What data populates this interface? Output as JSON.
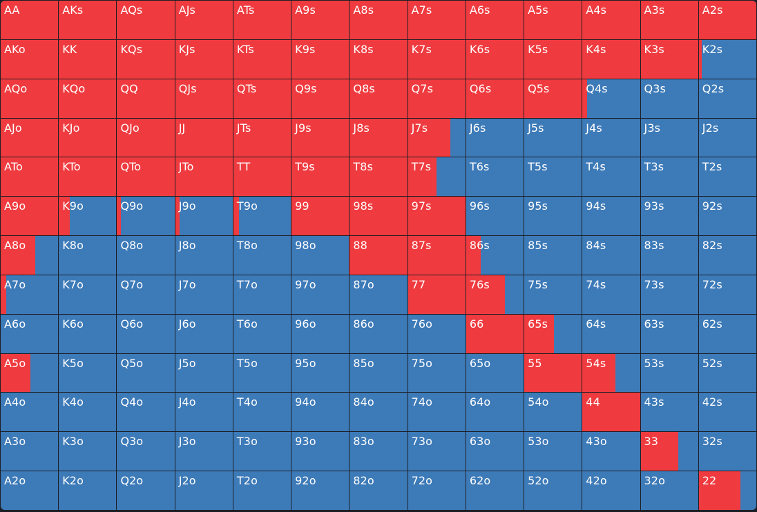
{
  "colors": {
    "raise": "#ef3b3f",
    "fold": "#3d7ab8",
    "grid_line": "#1b1e24"
  },
  "legend_meaning": {
    "raise_color_name": "red",
    "fold_color_name": "blue"
  },
  "ranks": [
    "A",
    "K",
    "Q",
    "J",
    "T",
    "9",
    "8",
    "7",
    "6",
    "5",
    "4",
    "3",
    "2"
  ],
  "rows": [
    [
      {
        "label": "AA",
        "raise_fraction": 1
      },
      {
        "label": "AKs",
        "raise_fraction": 1
      },
      {
        "label": "AQs",
        "raise_fraction": 1
      },
      {
        "label": "AJs",
        "raise_fraction": 1
      },
      {
        "label": "ATs",
        "raise_fraction": 1
      },
      {
        "label": "A9s",
        "raise_fraction": 1
      },
      {
        "label": "A8s",
        "raise_fraction": 1
      },
      {
        "label": "A7s",
        "raise_fraction": 1
      },
      {
        "label": "A6s",
        "raise_fraction": 1
      },
      {
        "label": "A5s",
        "raise_fraction": 1
      },
      {
        "label": "A4s",
        "raise_fraction": 1
      },
      {
        "label": "A3s",
        "raise_fraction": 1
      },
      {
        "label": "A2s",
        "raise_fraction": 1
      }
    ],
    [
      {
        "label": "AKo",
        "raise_fraction": 1
      },
      {
        "label": "KK",
        "raise_fraction": 1
      },
      {
        "label": "KQs",
        "raise_fraction": 1
      },
      {
        "label": "KJs",
        "raise_fraction": 1
      },
      {
        "label": "KTs",
        "raise_fraction": 1
      },
      {
        "label": "K9s",
        "raise_fraction": 1
      },
      {
        "label": "K8s",
        "raise_fraction": 1
      },
      {
        "label": "K7s",
        "raise_fraction": 1
      },
      {
        "label": "K6s",
        "raise_fraction": 1
      },
      {
        "label": "K5s",
        "raise_fraction": 1
      },
      {
        "label": "K4s",
        "raise_fraction": 1
      },
      {
        "label": "K3s",
        "raise_fraction": 1
      },
      {
        "label": "K2s",
        "raise_fraction": 0.05
      }
    ],
    [
      {
        "label": "AQo",
        "raise_fraction": 1
      },
      {
        "label": "KQo",
        "raise_fraction": 1
      },
      {
        "label": "QQ",
        "raise_fraction": 1
      },
      {
        "label": "QJs",
        "raise_fraction": 1
      },
      {
        "label": "QTs",
        "raise_fraction": 1
      },
      {
        "label": "Q9s",
        "raise_fraction": 1
      },
      {
        "label": "Q8s",
        "raise_fraction": 1
      },
      {
        "label": "Q7s",
        "raise_fraction": 1
      },
      {
        "label": "Q6s",
        "raise_fraction": 1
      },
      {
        "label": "Q5s",
        "raise_fraction": 1
      },
      {
        "label": "Q4s",
        "raise_fraction": 0.08
      },
      {
        "label": "Q3s",
        "raise_fraction": 0
      },
      {
        "label": "Q2s",
        "raise_fraction": 0
      }
    ],
    [
      {
        "label": "AJo",
        "raise_fraction": 1
      },
      {
        "label": "KJo",
        "raise_fraction": 1
      },
      {
        "label": "QJo",
        "raise_fraction": 1
      },
      {
        "label": "JJ",
        "raise_fraction": 1
      },
      {
        "label": "JTs",
        "raise_fraction": 1
      },
      {
        "label": "J9s",
        "raise_fraction": 1
      },
      {
        "label": "J8s",
        "raise_fraction": 1
      },
      {
        "label": "J7s",
        "raise_fraction": 0.74
      },
      {
        "label": "J6s",
        "raise_fraction": 0
      },
      {
        "label": "J5s",
        "raise_fraction": 0
      },
      {
        "label": "J4s",
        "raise_fraction": 0
      },
      {
        "label": "J3s",
        "raise_fraction": 0
      },
      {
        "label": "J2s",
        "raise_fraction": 0
      }
    ],
    [
      {
        "label": "ATo",
        "raise_fraction": 1
      },
      {
        "label": "KTo",
        "raise_fraction": 1
      },
      {
        "label": "QTo",
        "raise_fraction": 1
      },
      {
        "label": "JTo",
        "raise_fraction": 1
      },
      {
        "label": "TT",
        "raise_fraction": 1
      },
      {
        "label": "T9s",
        "raise_fraction": 1
      },
      {
        "label": "T8s",
        "raise_fraction": 1
      },
      {
        "label": "T7s",
        "raise_fraction": 0.5
      },
      {
        "label": "T6s",
        "raise_fraction": 0
      },
      {
        "label": "T5s",
        "raise_fraction": 0
      },
      {
        "label": "T4s",
        "raise_fraction": 0
      },
      {
        "label": "T3s",
        "raise_fraction": 0
      },
      {
        "label": "T2s",
        "raise_fraction": 0
      }
    ],
    [
      {
        "label": "A9o",
        "raise_fraction": 1
      },
      {
        "label": "K9o",
        "raise_fraction": 0.19
      },
      {
        "label": "Q9o",
        "raise_fraction": 0.07
      },
      {
        "label": "J9o",
        "raise_fraction": 0.07
      },
      {
        "label": "T9o",
        "raise_fraction": 0.1
      },
      {
        "label": "99",
        "raise_fraction": 1
      },
      {
        "label": "98s",
        "raise_fraction": 1
      },
      {
        "label": "97s",
        "raise_fraction": 1
      },
      {
        "label": "96s",
        "raise_fraction": 0
      },
      {
        "label": "95s",
        "raise_fraction": 0
      },
      {
        "label": "94s",
        "raise_fraction": 0
      },
      {
        "label": "93s",
        "raise_fraction": 0
      },
      {
        "label": "92s",
        "raise_fraction": 0
      }
    ],
    [
      {
        "label": "A8o",
        "raise_fraction": 0.6
      },
      {
        "label": "K8o",
        "raise_fraction": 0
      },
      {
        "label": "Q8o",
        "raise_fraction": 0
      },
      {
        "label": "J8o",
        "raise_fraction": 0
      },
      {
        "label": "T8o",
        "raise_fraction": 0
      },
      {
        "label": "98o",
        "raise_fraction": 0
      },
      {
        "label": "88",
        "raise_fraction": 1
      },
      {
        "label": "87s",
        "raise_fraction": 1
      },
      {
        "label": "86s",
        "raise_fraction": 0.26
      },
      {
        "label": "85s",
        "raise_fraction": 0
      },
      {
        "label": "84s",
        "raise_fraction": 0
      },
      {
        "label": "83s",
        "raise_fraction": 0
      },
      {
        "label": "82s",
        "raise_fraction": 0
      }
    ],
    [
      {
        "label": "A7o",
        "raise_fraction": 0.1
      },
      {
        "label": "K7o",
        "raise_fraction": 0
      },
      {
        "label": "Q7o",
        "raise_fraction": 0
      },
      {
        "label": "J7o",
        "raise_fraction": 0
      },
      {
        "label": "T7o",
        "raise_fraction": 0
      },
      {
        "label": "97o",
        "raise_fraction": 0
      },
      {
        "label": "87o",
        "raise_fraction": 0
      },
      {
        "label": "77",
        "raise_fraction": 1
      },
      {
        "label": "76s",
        "raise_fraction": 0.68
      },
      {
        "label": "75s",
        "raise_fraction": 0
      },
      {
        "label": "74s",
        "raise_fraction": 0
      },
      {
        "label": "73s",
        "raise_fraction": 0
      },
      {
        "label": "72s",
        "raise_fraction": 0
      }
    ],
    [
      {
        "label": "A6o",
        "raise_fraction": 0
      },
      {
        "label": "K6o",
        "raise_fraction": 0
      },
      {
        "label": "Q6o",
        "raise_fraction": 0
      },
      {
        "label": "J6o",
        "raise_fraction": 0
      },
      {
        "label": "T6o",
        "raise_fraction": 0
      },
      {
        "label": "96o",
        "raise_fraction": 0
      },
      {
        "label": "86o",
        "raise_fraction": 0
      },
      {
        "label": "76o",
        "raise_fraction": 0
      },
      {
        "label": "66",
        "raise_fraction": 1
      },
      {
        "label": "65s",
        "raise_fraction": 0.52
      },
      {
        "label": "64s",
        "raise_fraction": 0
      },
      {
        "label": "63s",
        "raise_fraction": 0
      },
      {
        "label": "62s",
        "raise_fraction": 0
      }
    ],
    [
      {
        "label": "A5o",
        "raise_fraction": 0.52
      },
      {
        "label": "K5o",
        "raise_fraction": 0
      },
      {
        "label": "Q5o",
        "raise_fraction": 0
      },
      {
        "label": "J5o",
        "raise_fraction": 0
      },
      {
        "label": "T5o",
        "raise_fraction": 0
      },
      {
        "label": "95o",
        "raise_fraction": 0
      },
      {
        "label": "85o",
        "raise_fraction": 0
      },
      {
        "label": "75o",
        "raise_fraction": 0
      },
      {
        "label": "65o",
        "raise_fraction": 0
      },
      {
        "label": "55",
        "raise_fraction": 1
      },
      {
        "label": "54s",
        "raise_fraction": 0.57
      },
      {
        "label": "53s",
        "raise_fraction": 0
      },
      {
        "label": "52s",
        "raise_fraction": 0
      }
    ],
    [
      {
        "label": "A4o",
        "raise_fraction": 0
      },
      {
        "label": "K4o",
        "raise_fraction": 0
      },
      {
        "label": "Q4o",
        "raise_fraction": 0
      },
      {
        "label": "J4o",
        "raise_fraction": 0
      },
      {
        "label": "T4o",
        "raise_fraction": 0
      },
      {
        "label": "94o",
        "raise_fraction": 0
      },
      {
        "label": "84o",
        "raise_fraction": 0
      },
      {
        "label": "74o",
        "raise_fraction": 0
      },
      {
        "label": "64o",
        "raise_fraction": 0
      },
      {
        "label": "54o",
        "raise_fraction": 0
      },
      {
        "label": "44",
        "raise_fraction": 1
      },
      {
        "label": "43s",
        "raise_fraction": 0
      },
      {
        "label": "42s",
        "raise_fraction": 0
      }
    ],
    [
      {
        "label": "A3o",
        "raise_fraction": 0
      },
      {
        "label": "K3o",
        "raise_fraction": 0
      },
      {
        "label": "Q3o",
        "raise_fraction": 0
      },
      {
        "label": "J3o",
        "raise_fraction": 0
      },
      {
        "label": "T3o",
        "raise_fraction": 0
      },
      {
        "label": "93o",
        "raise_fraction": 0
      },
      {
        "label": "83o",
        "raise_fraction": 0
      },
      {
        "label": "73o",
        "raise_fraction": 0
      },
      {
        "label": "63o",
        "raise_fraction": 0
      },
      {
        "label": "53o",
        "raise_fraction": 0
      },
      {
        "label": "43o",
        "raise_fraction": 0
      },
      {
        "label": "33",
        "raise_fraction": 0.65
      },
      {
        "label": "32s",
        "raise_fraction": 0
      }
    ],
    [
      {
        "label": "A2o",
        "raise_fraction": 0
      },
      {
        "label": "K2o",
        "raise_fraction": 0
      },
      {
        "label": "Q2o",
        "raise_fraction": 0
      },
      {
        "label": "J2o",
        "raise_fraction": 0
      },
      {
        "label": "T2o",
        "raise_fraction": 0
      },
      {
        "label": "92o",
        "raise_fraction": 0
      },
      {
        "label": "82o",
        "raise_fraction": 0
      },
      {
        "label": "72o",
        "raise_fraction": 0
      },
      {
        "label": "62o",
        "raise_fraction": 0
      },
      {
        "label": "52o",
        "raise_fraction": 0
      },
      {
        "label": "42o",
        "raise_fraction": 0
      },
      {
        "label": "32o",
        "raise_fraction": 0
      },
      {
        "label": "22",
        "raise_fraction": 0.72
      }
    ]
  ]
}
